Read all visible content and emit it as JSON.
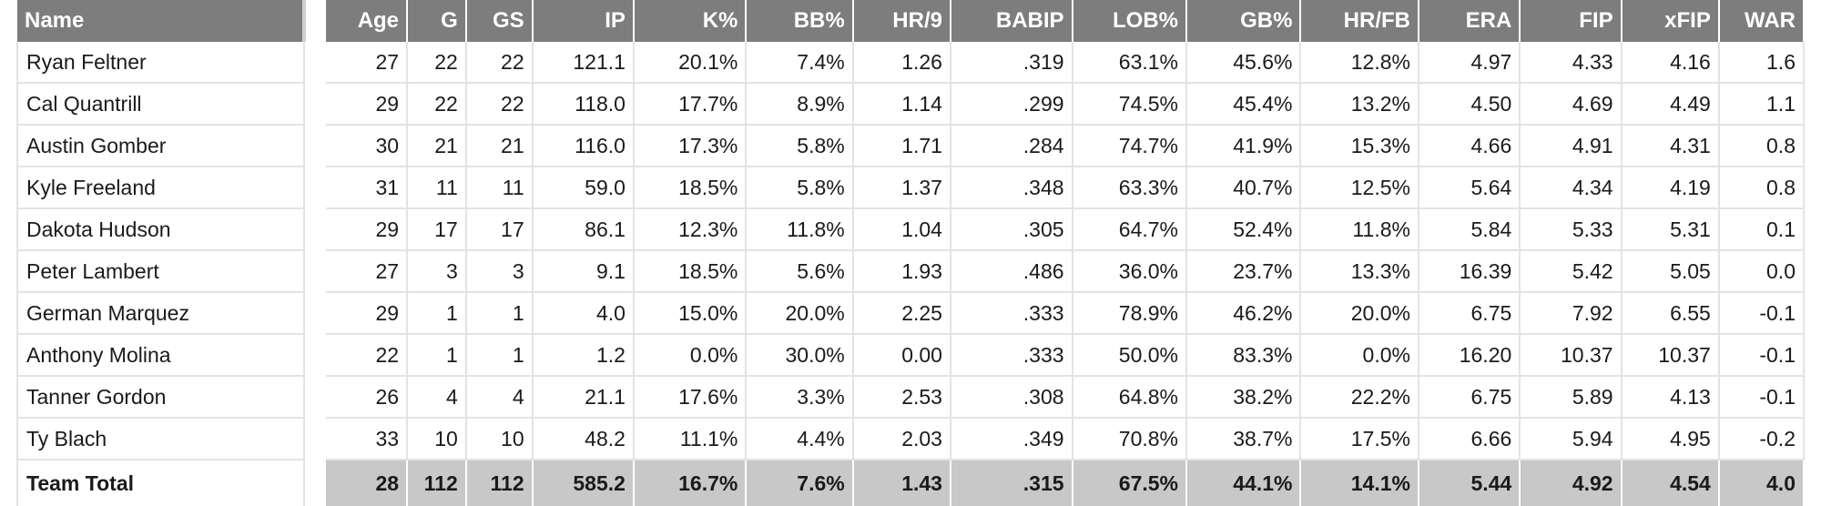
{
  "table": {
    "name_header": "Name",
    "columns": [
      "Age",
      "G",
      "GS",
      "IP",
      "K%",
      "BB%",
      "HR/9",
      "BABIP",
      "LOB%",
      "GB%",
      "HR/FB",
      "ERA",
      "FIP",
      "xFIP",
      "WAR"
    ],
    "rows": [
      {
        "name": "Ryan Feltner",
        "values": [
          "27",
          "22",
          "22",
          "121.1",
          "20.1%",
          "7.4%",
          "1.26",
          ".319",
          "63.1%",
          "45.6%",
          "12.8%",
          "4.97",
          "4.33",
          "4.16",
          "1.6"
        ]
      },
      {
        "name": "Cal Quantrill",
        "values": [
          "29",
          "22",
          "22",
          "118.0",
          "17.7%",
          "8.9%",
          "1.14",
          ".299",
          "74.5%",
          "45.4%",
          "13.2%",
          "4.50",
          "4.69",
          "4.49",
          "1.1"
        ]
      },
      {
        "name": "Austin Gomber",
        "values": [
          "30",
          "21",
          "21",
          "116.0",
          "17.3%",
          "5.8%",
          "1.71",
          ".284",
          "74.7%",
          "41.9%",
          "15.3%",
          "4.66",
          "4.91",
          "4.31",
          "0.8"
        ]
      },
      {
        "name": "Kyle Freeland",
        "values": [
          "31",
          "11",
          "11",
          "59.0",
          "18.5%",
          "5.8%",
          "1.37",
          ".348",
          "63.3%",
          "40.7%",
          "12.5%",
          "5.64",
          "4.34",
          "4.19",
          "0.8"
        ]
      },
      {
        "name": "Dakota Hudson",
        "values": [
          "29",
          "17",
          "17",
          "86.1",
          "12.3%",
          "11.8%",
          "1.04",
          ".305",
          "64.7%",
          "52.4%",
          "11.8%",
          "5.84",
          "5.33",
          "5.31",
          "0.1"
        ]
      },
      {
        "name": "Peter Lambert",
        "values": [
          "27",
          "3",
          "3",
          "9.1",
          "18.5%",
          "5.6%",
          "1.93",
          ".486",
          "36.0%",
          "23.7%",
          "13.3%",
          "16.39",
          "5.42",
          "5.05",
          "0.0"
        ]
      },
      {
        "name": "German Marquez",
        "values": [
          "29",
          "1",
          "1",
          "4.0",
          "15.0%",
          "20.0%",
          "2.25",
          ".333",
          "78.9%",
          "46.2%",
          "20.0%",
          "6.75",
          "7.92",
          "6.55",
          "-0.1"
        ]
      },
      {
        "name": "Anthony Molina",
        "values": [
          "22",
          "1",
          "1",
          "1.2",
          "0.0%",
          "30.0%",
          "0.00",
          ".333",
          "50.0%",
          "83.3%",
          "0.0%",
          "16.20",
          "10.37",
          "10.37",
          "-0.1"
        ]
      },
      {
        "name": "Tanner Gordon",
        "values": [
          "26",
          "4",
          "4",
          "21.1",
          "17.6%",
          "3.3%",
          "2.53",
          ".308",
          "64.8%",
          "38.2%",
          "22.2%",
          "6.75",
          "5.89",
          "4.13",
          "-0.1"
        ]
      },
      {
        "name": "Ty Blach",
        "values": [
          "33",
          "10",
          "10",
          "48.2",
          "11.1%",
          "4.4%",
          "2.03",
          ".349",
          "70.8%",
          "38.7%",
          "17.5%",
          "6.66",
          "5.94",
          "4.95",
          "-0.2"
        ]
      }
    ],
    "total": {
      "name": "Team Total",
      "values": [
        "28",
        "112",
        "112",
        "585.2",
        "16.7%",
        "7.6%",
        "1.43",
        ".315",
        "67.5%",
        "44.1%",
        "14.1%",
        "5.44",
        "4.92",
        "4.54",
        "4.0"
      ]
    }
  }
}
